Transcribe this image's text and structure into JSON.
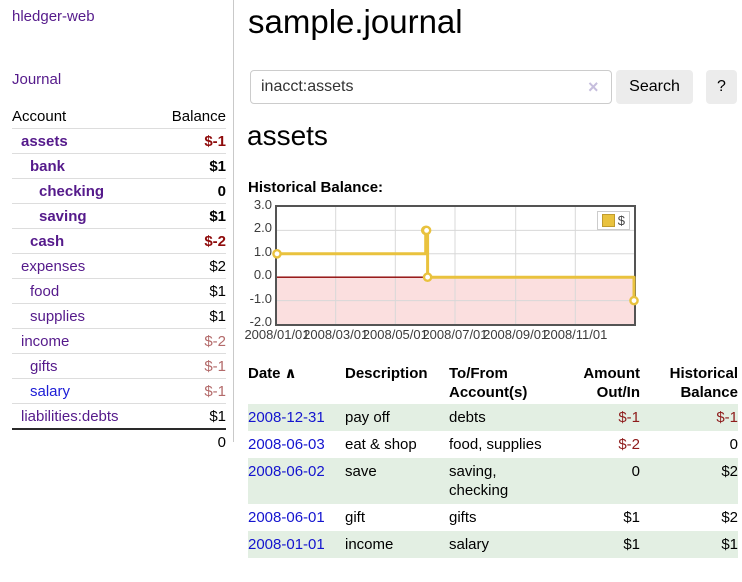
{
  "colors": {
    "link_purple": "#551a8b",
    "link_blue": "#1d1dd6",
    "negative_strong": "#8e0b0b",
    "negative_muted": "#b36a6a",
    "row_green": "#e3efe3",
    "chart_gold": "#e9c23e",
    "chart_negative_fill": "#fbdfdf",
    "chart_zero_line": "#8b0000"
  },
  "sidebar": {
    "app_title": "hledger-web",
    "journal_label": "Journal",
    "accounts": {
      "header": {
        "account": "Account",
        "balance": "Balance"
      },
      "rows": [
        {
          "name": "assets",
          "level": 1,
          "bold": true,
          "name_color": "purple",
          "balance": "$-1",
          "balance_color": "red"
        },
        {
          "name": "bank",
          "level": 2,
          "bold": true,
          "name_color": "purple",
          "balance": "$1",
          "balance_color": "black"
        },
        {
          "name": "checking",
          "level": 3,
          "bold": true,
          "name_color": "purple",
          "balance": "0",
          "balance_color": "black"
        },
        {
          "name": "saving",
          "level": 3,
          "bold": true,
          "name_color": "purple",
          "balance": "$1",
          "balance_color": "black"
        },
        {
          "name": "cash",
          "level": 2,
          "bold": true,
          "name_color": "purple",
          "balance": "$-2",
          "balance_color": "red"
        },
        {
          "name": "expenses",
          "level": 1,
          "bold": false,
          "name_color": "purple",
          "balance": "$2",
          "balance_color": "black"
        },
        {
          "name": "food",
          "level": 2,
          "bold": false,
          "name_color": "purple",
          "balance": "$1",
          "balance_color": "black"
        },
        {
          "name": "supplies",
          "level": 2,
          "bold": false,
          "name_color": "purple",
          "balance": "$1",
          "balance_color": "black"
        },
        {
          "name": "income",
          "level": 1,
          "bold": false,
          "name_color": "purple",
          "balance": "$-2",
          "balance_color": "muted"
        },
        {
          "name": "gifts",
          "level": 2,
          "bold": false,
          "name_color": "purple",
          "balance": "$-1",
          "balance_color": "muted"
        },
        {
          "name": "salary",
          "level": 2,
          "bold": false,
          "name_color": "blue",
          "balance": "$-1",
          "balance_color": "muted"
        },
        {
          "name": "liabilities:debts",
          "level": 1,
          "bold": false,
          "name_color": "purple",
          "balance": "$1",
          "balance_color": "black"
        }
      ],
      "total": "0"
    }
  },
  "main": {
    "title": "sample.journal",
    "search": {
      "value": "inacct:assets",
      "clear_icon": "×",
      "search_label": "Search",
      "help_label": "?"
    },
    "account_heading": "assets",
    "chart_label": "Historical Balance:"
  },
  "chart_data": {
    "type": "line",
    "title": "Historical Balance of assets",
    "step": true,
    "series": [
      {
        "name": "$",
        "points": [
          [
            "2008-01-01",
            1
          ],
          [
            "2008-06-01",
            2
          ],
          [
            "2008-06-02",
            2
          ],
          [
            "2008-06-03",
            0
          ],
          [
            "2008-12-31",
            -1
          ]
        ]
      }
    ],
    "x_range": [
      "2008-01-01",
      "2008-12-31"
    ],
    "ylim": [
      -2,
      3
    ],
    "yticks": [
      "3.0",
      "2.0",
      "1.0",
      "0.0",
      "-1.0",
      "-2.0"
    ],
    "xticks": [
      "2008/01/01",
      "2008/03/01",
      "2008/05/01",
      "2008/07/01",
      "2008/09/01",
      "2008/11/01"
    ],
    "legend": {
      "label": "$",
      "position": "top-right"
    },
    "grid": true,
    "negative_region_shaded": true
  },
  "register": {
    "columns": [
      {
        "label_lines": [
          "Date"
        ],
        "sort_icon": "∧",
        "align": "left"
      },
      {
        "label_lines": [
          "Description"
        ],
        "align": "left"
      },
      {
        "label_lines": [
          "To/From",
          "Account(s)"
        ],
        "align": "left"
      },
      {
        "label_lines": [
          "Amount",
          "Out/In"
        ],
        "align": "right"
      },
      {
        "label_lines": [
          "Historical",
          "Balance"
        ],
        "align": "right"
      }
    ],
    "rows": [
      {
        "date": "2008-12-31",
        "description": "pay off",
        "account_lines": [
          "debts"
        ],
        "amount": "$-1",
        "amount_negative": true,
        "balance": "$-1",
        "balance_negative": true,
        "green": true
      },
      {
        "date": "2008-06-03",
        "description": "eat & shop",
        "account_lines": [
          "food, supplies"
        ],
        "amount": "$-2",
        "amount_negative": true,
        "balance": "0",
        "balance_negative": false,
        "green": false
      },
      {
        "date": "2008-06-02",
        "description": "save",
        "account_lines": [
          "saving,",
          "checking"
        ],
        "amount": "0",
        "amount_negative": false,
        "balance": "$2",
        "balance_negative": false,
        "green": true
      },
      {
        "date": "2008-06-01",
        "description": "gift",
        "account_lines": [
          "gifts"
        ],
        "amount": "$1",
        "amount_negative": false,
        "balance": "$2",
        "balance_negative": false,
        "green": false
      },
      {
        "date": "2008-01-01",
        "description": "income",
        "account_lines": [
          "salary"
        ],
        "amount": "$1",
        "amount_negative": false,
        "balance": "$1",
        "balance_negative": false,
        "green": true
      }
    ]
  }
}
